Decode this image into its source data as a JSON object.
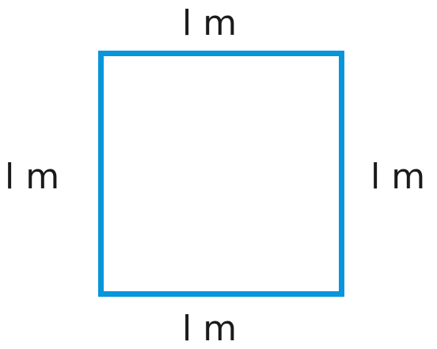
{
  "diagram": {
    "shape": "square",
    "stroke_color": "#0795dc",
    "sides": {
      "top": "l m",
      "bottom": "l m",
      "left": "l m",
      "right": "l m"
    }
  }
}
